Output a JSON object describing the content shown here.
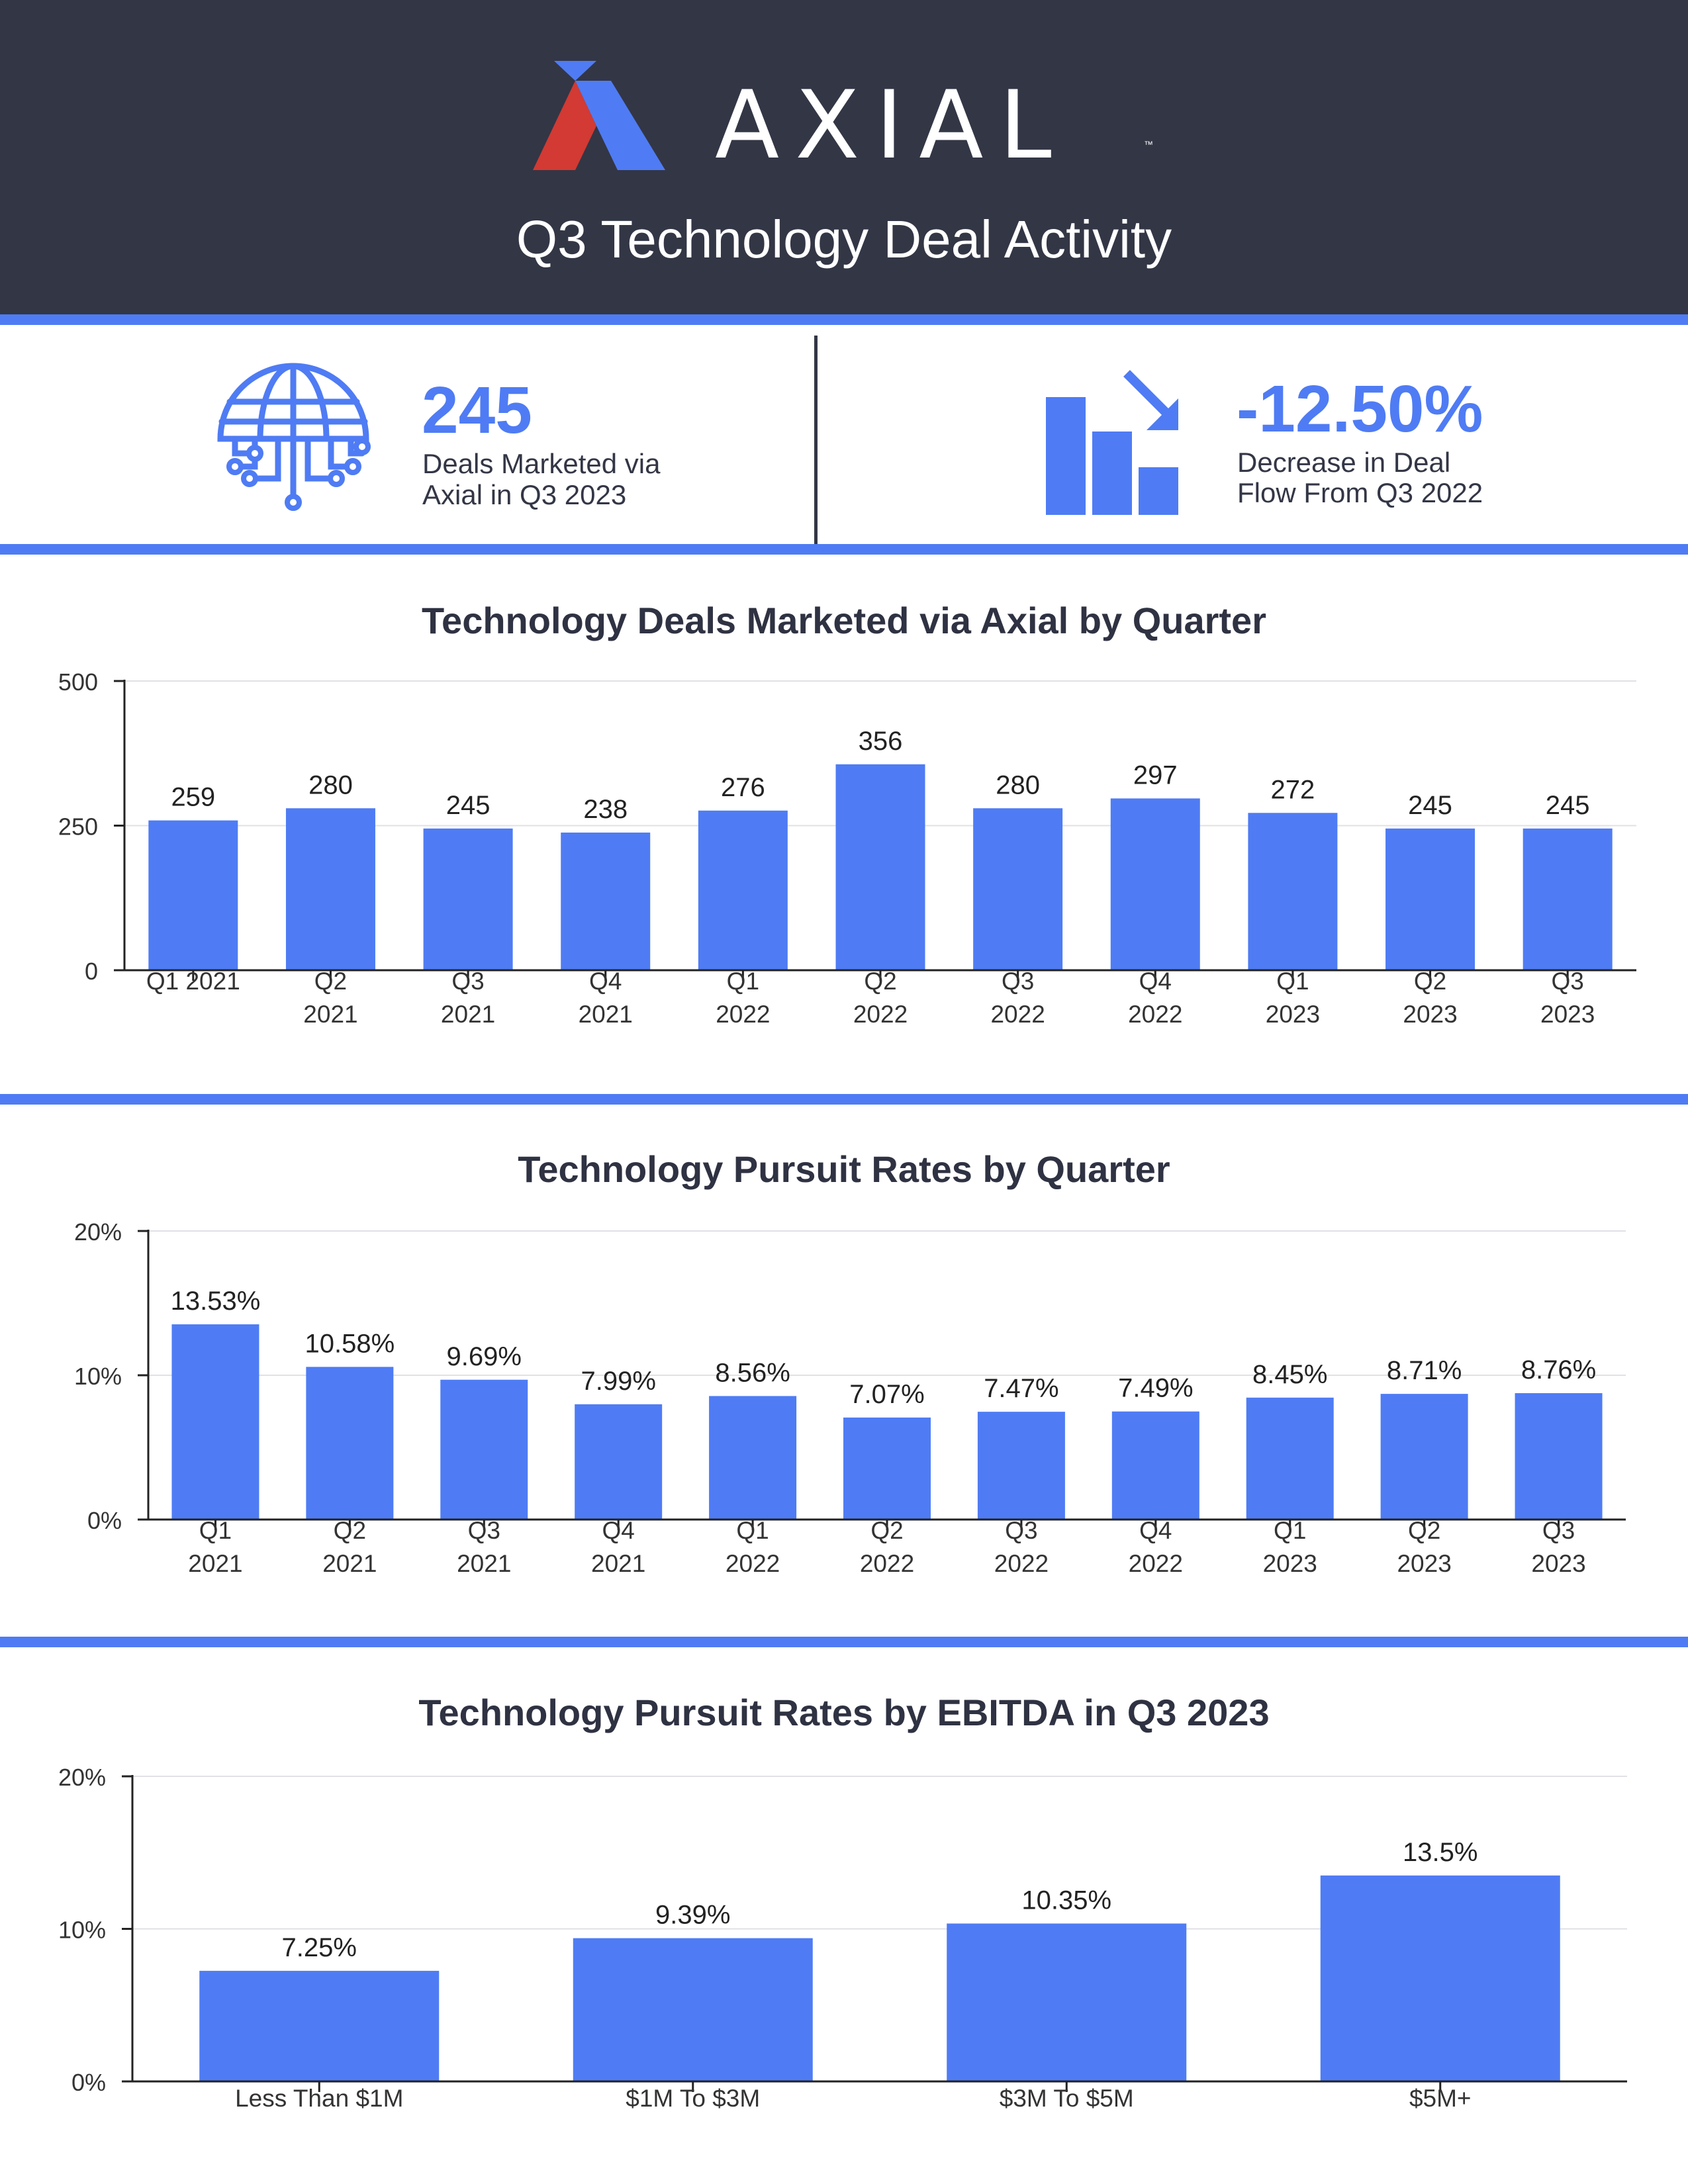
{
  "header": {
    "brand": "AXIAL",
    "trademark": "™",
    "title": "Q3 Technology Deal Activity"
  },
  "stats": [
    {
      "value": "245",
      "line1": "Deals Marketed via",
      "line2": "Axial in Q3 2023",
      "icon": "globe-circuit-icon"
    },
    {
      "value": "-12.50%",
      "line1": "Decrease in Deal",
      "line2": "Flow From Q3 2022",
      "icon": "declining-bars-arrow-icon"
    }
  ],
  "colors": {
    "bar": "#4f7cf4",
    "header_bg": "#333645",
    "text": "#2f3242",
    "logo_red": "#d23a33",
    "logo_blue": "#4f7cf4"
  },
  "chart_data": [
    {
      "type": "bar",
      "title": "Technology Deals Marketed via Axial by Quarter",
      "categories": [
        [
          "Q1 2021"
        ],
        [
          "Q2",
          "2021"
        ],
        [
          "Q3",
          "2021"
        ],
        [
          "Q4",
          "2021"
        ],
        [
          "Q1",
          "2022"
        ],
        [
          "Q2",
          "2022"
        ],
        [
          "Q3",
          "2022"
        ],
        [
          "Q4",
          "2022"
        ],
        [
          "Q1",
          "2023"
        ],
        [
          "Q2",
          "2023"
        ],
        [
          "Q3",
          "2023"
        ]
      ],
      "values": [
        259,
        280,
        245,
        238,
        276,
        356,
        280,
        297,
        272,
        245,
        245
      ],
      "value_labels": [
        "259",
        "280",
        "245",
        "238",
        "276",
        "356",
        "280",
        "297",
        "272",
        "245",
        "245"
      ],
      "yticks": [
        "0",
        "250",
        "500"
      ],
      "ylim": [
        0,
        500
      ],
      "grid": true
    },
    {
      "type": "bar",
      "title": "Technology Pursuit Rates by Quarter",
      "categories": [
        [
          "Q1",
          "2021"
        ],
        [
          "Q2",
          "2021"
        ],
        [
          "Q3",
          "2021"
        ],
        [
          "Q4",
          "2021"
        ],
        [
          "Q1",
          "2022"
        ],
        [
          "Q2",
          "2022"
        ],
        [
          "Q3",
          "2022"
        ],
        [
          "Q4",
          "2022"
        ],
        [
          "Q1",
          "2023"
        ],
        [
          "Q2",
          "2023"
        ],
        [
          "Q3",
          "2023"
        ]
      ],
      "values": [
        13.53,
        10.58,
        9.69,
        7.99,
        8.56,
        7.07,
        7.47,
        7.49,
        8.45,
        8.71,
        8.76
      ],
      "value_labels": [
        "13.53%",
        "10.58%",
        "9.69%",
        "7.99%",
        "8.56%",
        "7.07%",
        "7.47%",
        "7.49%",
        "8.45%",
        "8.71%",
        "8.76%"
      ],
      "yticks": [
        "0%",
        "10%",
        "20%"
      ],
      "ylim": [
        0,
        20
      ],
      "grid": true
    },
    {
      "type": "bar",
      "title": "Technology Pursuit Rates by EBITDA in Q3 2023",
      "categories": [
        [
          "Less Than $1M"
        ],
        [
          "$1M To $3M"
        ],
        [
          "$3M To $5M"
        ],
        [
          "$5M+"
        ]
      ],
      "values": [
        7.25,
        9.39,
        10.35,
        13.5
      ],
      "value_labels": [
        "7.25%",
        "9.39%",
        "10.35%",
        "13.5%"
      ],
      "yticks": [
        "0%",
        "10%",
        "20%"
      ],
      "ylim": [
        0,
        20
      ],
      "grid": true
    }
  ]
}
